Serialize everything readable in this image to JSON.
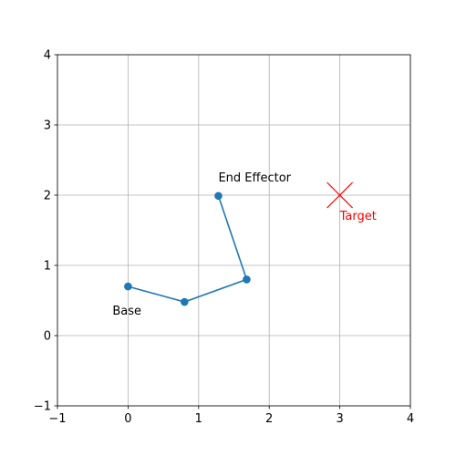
{
  "chart_data": {
    "type": "line",
    "title": "",
    "xlabel": "",
    "ylabel": "",
    "xlim": [
      -1,
      4
    ],
    "ylim": [
      -1,
      4
    ],
    "xticks": [
      -1,
      0,
      1,
      2,
      3,
      4
    ],
    "yticks": [
      -1,
      0,
      1,
      2,
      3,
      4
    ],
    "grid": true,
    "series": [
      {
        "x": [
          0,
          0.8,
          1.68,
          1.28
        ],
        "y": [
          0.7,
          0.48,
          0.8,
          1.99
        ],
        "color": "#1f77b4"
      }
    ],
    "target": {
      "x": 3.0,
      "y": 2.0,
      "color": "#ff0000",
      "label": "Target"
    },
    "annotations": [
      {
        "text": "Base",
        "x": 0.0,
        "y": 0.7
      },
      {
        "text": "End Effector",
        "x": 1.28,
        "y": 1.99
      }
    ]
  }
}
